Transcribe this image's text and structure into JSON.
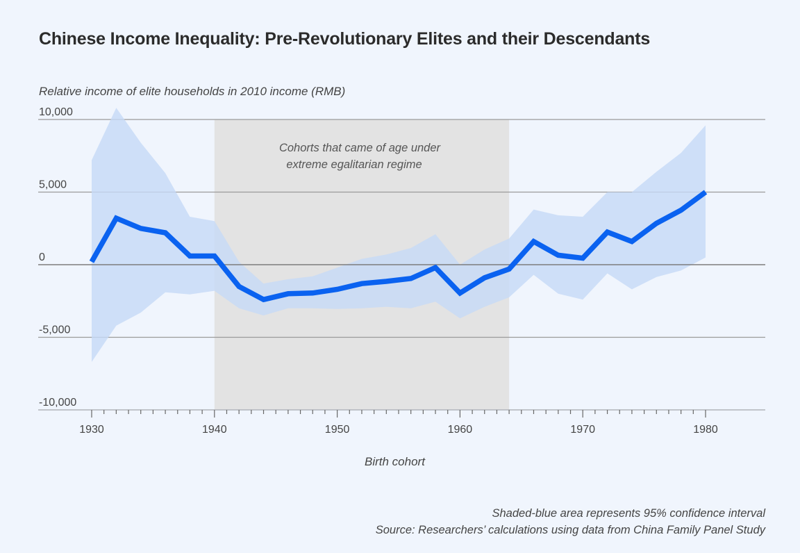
{
  "title": "Chinese Income Inequality: Pre-Revolutionary Elites and their Descendants",
  "footnotes": {
    "ci_note": "Shaded-blue area represents 95% confidence interval",
    "source": "Source: Researchers’ calculations using data from China Family Panel Study"
  },
  "colors": {
    "line": "#0a62f0",
    "ci_band": "#c6daf6",
    "shaded_region": "#e3e3e3",
    "background": "#f0f5fd"
  },
  "chart_data": {
    "type": "line",
    "title": "Chinese Income Inequality: Pre-Revolutionary Elites and their Descendants",
    "ylabel": "Relative income of elite households in 2010 income (RMB)",
    "xlabel": "Birth cohort",
    "xlim": [
      1926,
      1985
    ],
    "ylim": [
      -10000,
      10000
    ],
    "grid": true,
    "yticks": [
      10000,
      5000,
      0,
      -5000,
      -10000
    ],
    "ytick_labels": [
      "10,000",
      "5,000",
      "0",
      "-5,000",
      "-10,000"
    ],
    "xticks": [
      1930,
      1940,
      1950,
      1960,
      1970,
      1980
    ],
    "xtick_labels": [
      "1930",
      "1940",
      "1950",
      "1960",
      "1970",
      "1980"
    ],
    "x": [
      1930,
      1932,
      1934,
      1936,
      1938,
      1940,
      1942,
      1944,
      1946,
      1948,
      1950,
      1952,
      1954,
      1956,
      1958,
      1960,
      1962,
      1964,
      1966,
      1968,
      1970,
      1972,
      1974,
      1976,
      1978,
      1980
    ],
    "series": [
      {
        "name": "Relative income",
        "values": [
          200,
          3200,
          2500,
          2200,
          600,
          600,
          -1500,
          -2400,
          -2000,
          -1950,
          -1700,
          -1300,
          -1150,
          -950,
          -200,
          -1950,
          -900,
          -300,
          1600,
          650,
          450,
          2250,
          1600,
          2850,
          3750,
          5000
        ]
      },
      {
        "name": "95% CI upper",
        "values": [
          7200,
          10800,
          8400,
          6300,
          3300,
          3000,
          200,
          -1300,
          -1000,
          -800,
          -200,
          400,
          700,
          1150,
          2100,
          0,
          1050,
          1800,
          3800,
          3400,
          3300,
          5000,
          5000,
          6400,
          7700,
          9600
        ]
      },
      {
        "name": "95% CI lower",
        "values": [
          -6700,
          -4200,
          -3300,
          -1900,
          -2050,
          -1800,
          -3000,
          -3500,
          -3000,
          -3000,
          -3050,
          -3000,
          -2900,
          -3000,
          -2550,
          -3700,
          -2900,
          -2250,
          -700,
          -2000,
          -2400,
          -600,
          -1700,
          -850,
          -400,
          500
        ]
      }
    ],
    "shaded_region": {
      "x_range": [
        1940,
        1964
      ],
      "label_lines": [
        "Cohorts that came of age under",
        "extreme egalitarian regime"
      ]
    }
  }
}
